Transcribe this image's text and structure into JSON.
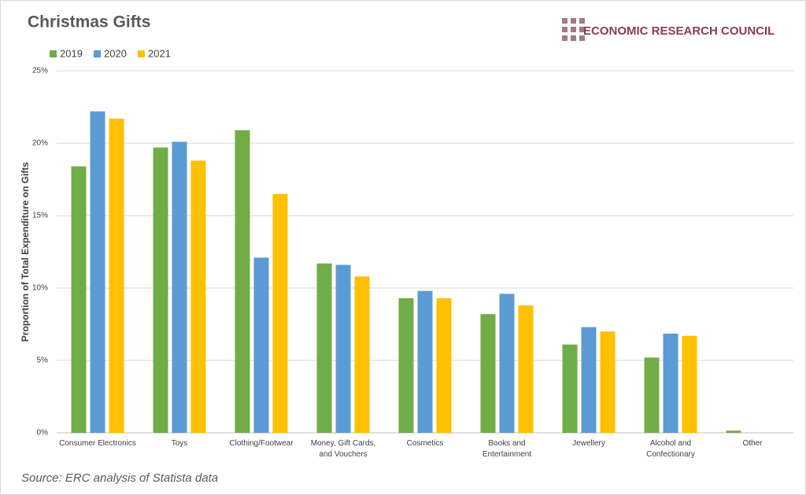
{
  "chart_data": {
    "type": "bar",
    "title": "Christmas Gifts",
    "publisher": "ECONOMIC RESEARCH COUNCIL",
    "y_label": "Proportion of Total Expenditure on Gifts",
    "source": "Source: ERC analysis of Statista data",
    "categories": [
      "Consumer Electronics",
      "Toys",
      "Clothing/Footwear",
      "Money, Gift Cards, and Vouchers",
      "Cosmetics",
      "Books and Entertainment",
      "Jewellery",
      "Alcohol and Confectionary",
      "Other"
    ],
    "series": [
      {
        "name": "2019",
        "color": "#70ad47",
        "values": [
          18.4,
          19.7,
          20.9,
          11.7,
          9.3,
          8.2,
          6.1,
          5.2,
          0.15
        ]
      },
      {
        "name": "2020",
        "color": "#5b9bd5",
        "values": [
          22.2,
          20.1,
          12.1,
          11.6,
          9.8,
          9.6,
          7.3,
          6.85,
          null
        ]
      },
      {
        "name": "2021",
        "color": "#ffc000",
        "values": [
          21.7,
          18.8,
          16.5,
          10.8,
          9.3,
          8.8,
          7.0,
          6.7,
          null
        ]
      }
    ],
    "ylim": [
      0,
      25
    ],
    "yticks": [
      {
        "value": 0,
        "label": "0%"
      },
      {
        "value": 5,
        "label": "5%"
      },
      {
        "value": 10,
        "label": "10%"
      },
      {
        "value": 15,
        "label": "15%"
      },
      {
        "value": 20,
        "label": "20%"
      },
      {
        "value": 25,
        "label": "25%"
      }
    ],
    "grid": true,
    "legend": "top-left"
  }
}
